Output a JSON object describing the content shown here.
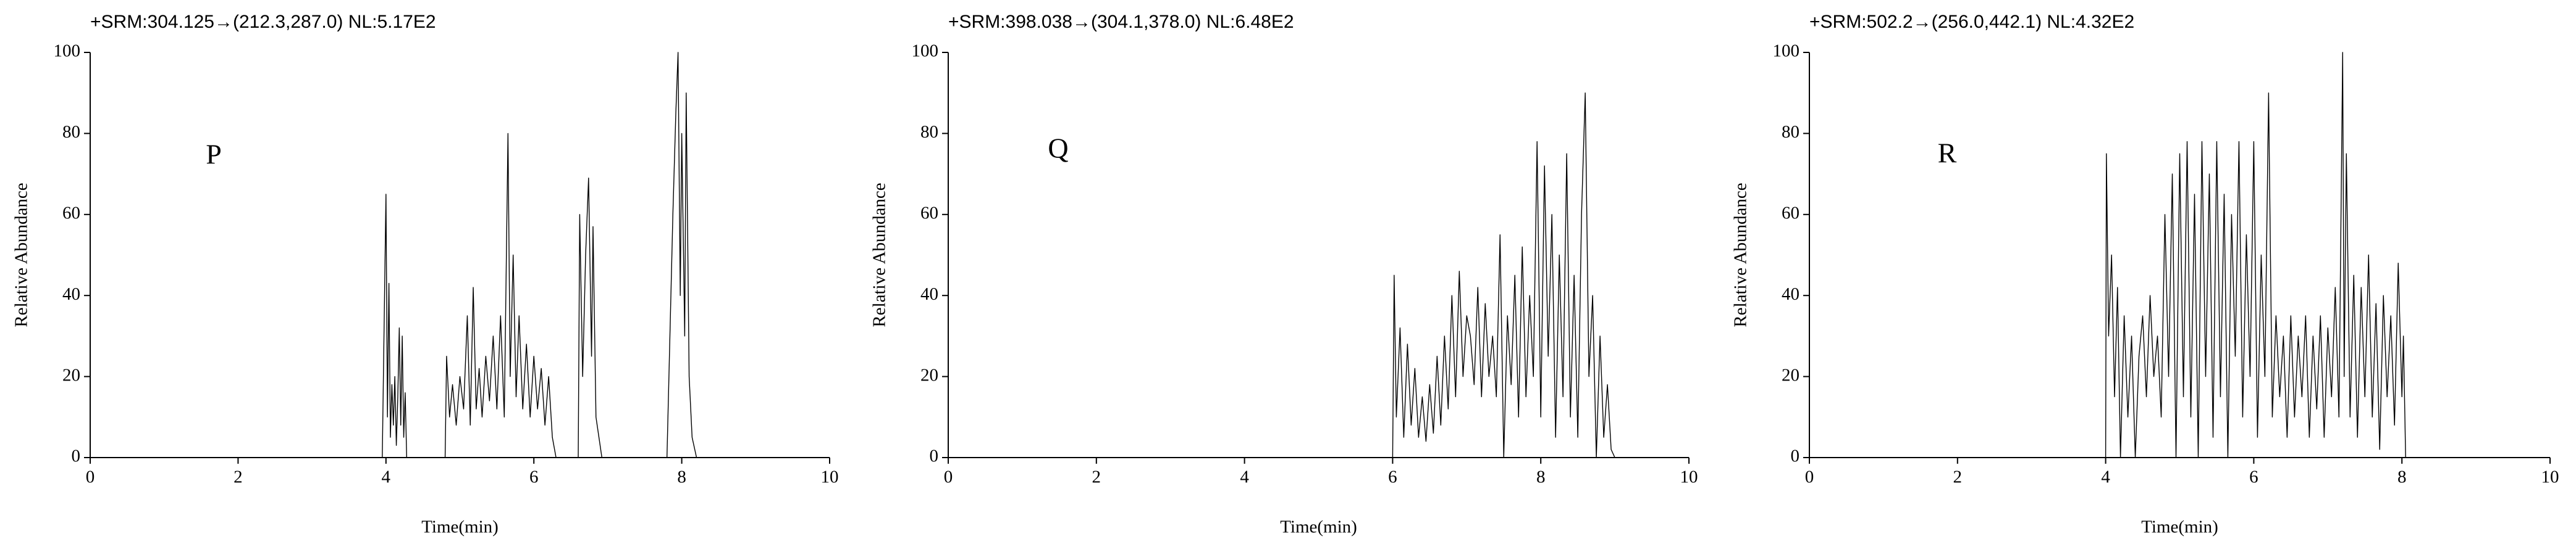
{
  "chart_data": [
    {
      "type": "line",
      "title": "+SRM:304.125→(212.3,287.0)  NL:5.17E2",
      "annotation": "P",
      "xlabel": "Time(min)",
      "ylabel": "Relative Abundance",
      "xlim": [
        0,
        10
      ],
      "xticks": [
        0,
        2,
        4,
        6,
        8,
        10
      ],
      "ylim": [
        0,
        100
      ],
      "yticks": [
        0,
        20,
        40,
        60,
        80,
        100
      ],
      "color": "#000000",
      "x": [
        3.95,
        4.0,
        4.02,
        4.04,
        4.06,
        4.08,
        4.1,
        4.12,
        4.14,
        4.16,
        4.18,
        4.2,
        4.22,
        4.24,
        4.26,
        4.28,
        4.8,
        4.82,
        4.86,
        4.9,
        4.95,
        5.0,
        5.05,
        5.1,
        5.14,
        5.18,
        5.22,
        5.26,
        5.3,
        5.35,
        5.4,
        5.45,
        5.5,
        5.55,
        5.6,
        5.65,
        5.68,
        5.72,
        5.76,
        5.8,
        5.85,
        5.9,
        5.95,
        6.0,
        6.05,
        6.1,
        6.15,
        6.2,
        6.25,
        6.3,
        6.6,
        6.62,
        6.66,
        6.7,
        6.74,
        6.78,
        6.8,
        6.84,
        6.88,
        6.92,
        7.8,
        7.84,
        7.88,
        7.92,
        7.95,
        7.98,
        8.0,
        8.04,
        8.06,
        8.1,
        8.14,
        8.2
      ],
      "values": [
        0,
        65,
        10,
        43,
        5,
        18,
        8,
        20,
        3,
        15,
        32,
        8,
        30,
        5,
        16,
        0,
        0,
        25,
        10,
        18,
        8,
        20,
        12,
        35,
        8,
        42,
        12,
        22,
        10,
        25,
        14,
        30,
        12,
        35,
        10,
        80,
        20,
        50,
        15,
        35,
        12,
        28,
        10,
        25,
        12,
        22,
        8,
        20,
        5,
        0,
        0,
        60,
        20,
        50,
        69,
        25,
        57,
        10,
        5,
        0,
        0,
        30,
        60,
        85,
        100,
        40,
        80,
        30,
        90,
        20,
        5,
        0
      ]
    },
    {
      "type": "line",
      "title": "+SRM:398.038→(304.1,378.0)  NL:6.48E2",
      "annotation": "Q",
      "xlabel": "Time(min)",
      "ylabel": "Relative Abundance",
      "xlim": [
        0,
        10
      ],
      "xticks": [
        0,
        2,
        4,
        6,
        8,
        10
      ],
      "ylim": [
        0,
        100
      ],
      "yticks": [
        0,
        20,
        40,
        60,
        80,
        100
      ],
      "color": "#000000",
      "x": [
        6.0,
        6.02,
        6.05,
        6.1,
        6.15,
        6.2,
        6.25,
        6.3,
        6.35,
        6.4,
        6.45,
        6.5,
        6.55,
        6.6,
        6.65,
        6.7,
        6.75,
        6.8,
        6.85,
        6.9,
        6.95,
        7.0,
        7.05,
        7.1,
        7.15,
        7.2,
        7.25,
        7.3,
        7.35,
        7.4,
        7.45,
        7.5,
        7.55,
        7.6,
        7.65,
        7.7,
        7.75,
        7.8,
        7.85,
        7.9,
        7.95,
        8.0,
        8.05,
        8.1,
        8.15,
        8.2,
        8.25,
        8.3,
        8.35,
        8.4,
        8.45,
        8.5,
        8.55,
        8.6,
        8.65,
        8.7,
        8.75,
        8.8,
        8.85,
        8.9,
        8.95,
        9.0
      ],
      "values": [
        0,
        45,
        10,
        32,
        5,
        28,
        8,
        22,
        5,
        15,
        4,
        18,
        6,
        25,
        8,
        30,
        12,
        40,
        15,
        46,
        20,
        35,
        30,
        18,
        42,
        15,
        38,
        20,
        30,
        15,
        55,
        0,
        35,
        18,
        45,
        10,
        52,
        15,
        40,
        20,
        78,
        10,
        72,
        25,
        60,
        5,
        50,
        15,
        75,
        10,
        45,
        5,
        60,
        90,
        20,
        40,
        0,
        30,
        5,
        18,
        2,
        0
      ]
    },
    {
      "type": "line",
      "title": "+SRM:502.2→(256.0,442.1)  NL:4.32E2",
      "annotation": "R",
      "xlabel": "Time(min)",
      "ylabel": "Relative Abundance",
      "xlim": [
        0,
        10
      ],
      "xticks": [
        0,
        2,
        4,
        6,
        8,
        10
      ],
      "ylim": [
        0,
        100
      ],
      "yticks": [
        0,
        20,
        40,
        60,
        80,
        100
      ],
      "color": "#000000",
      "x": [
        4.0,
        4.01,
        4.04,
        4.08,
        4.12,
        4.16,
        4.2,
        4.25,
        4.3,
        4.35,
        4.4,
        4.45,
        4.5,
        4.55,
        4.6,
        4.65,
        4.7,
        4.75,
        4.8,
        4.85,
        4.9,
        4.95,
        5.0,
        5.05,
        5.1,
        5.15,
        5.2,
        5.25,
        5.3,
        5.35,
        5.4,
        5.45,
        5.5,
        5.55,
        5.6,
        5.65,
        5.7,
        5.75,
        5.8,
        5.85,
        5.9,
        5.95,
        6.0,
        6.05,
        6.1,
        6.15,
        6.2,
        6.25,
        6.3,
        6.35,
        6.4,
        6.45,
        6.5,
        6.55,
        6.6,
        6.65,
        6.7,
        6.75,
        6.8,
        6.85,
        6.9,
        6.95,
        7.0,
        7.05,
        7.1,
        7.15,
        7.2,
        7.22,
        7.25,
        7.3,
        7.35,
        7.4,
        7.45,
        7.5,
        7.55,
        7.6,
        7.65,
        7.7,
        7.75,
        7.8,
        7.85,
        7.9,
        7.95,
        8.0,
        8.02,
        8.05
      ],
      "values": [
        0,
        75,
        30,
        50,
        15,
        42,
        0,
        35,
        10,
        30,
        0,
        25,
        35,
        15,
        40,
        20,
        30,
        10,
        60,
        20,
        70,
        0,
        75,
        15,
        78,
        10,
        65,
        0,
        78,
        20,
        70,
        5,
        78,
        15,
        65,
        0,
        60,
        25,
        78,
        10,
        55,
        20,
        78,
        5,
        50,
        20,
        90,
        10,
        35,
        15,
        30,
        5,
        35,
        10,
        30,
        15,
        35,
        5,
        30,
        12,
        35,
        5,
        32,
        15,
        42,
        10,
        100,
        20,
        75,
        10,
        45,
        5,
        42,
        15,
        50,
        10,
        38,
        2,
        40,
        15,
        35,
        8,
        48,
        15,
        30,
        0
      ]
    }
  ]
}
